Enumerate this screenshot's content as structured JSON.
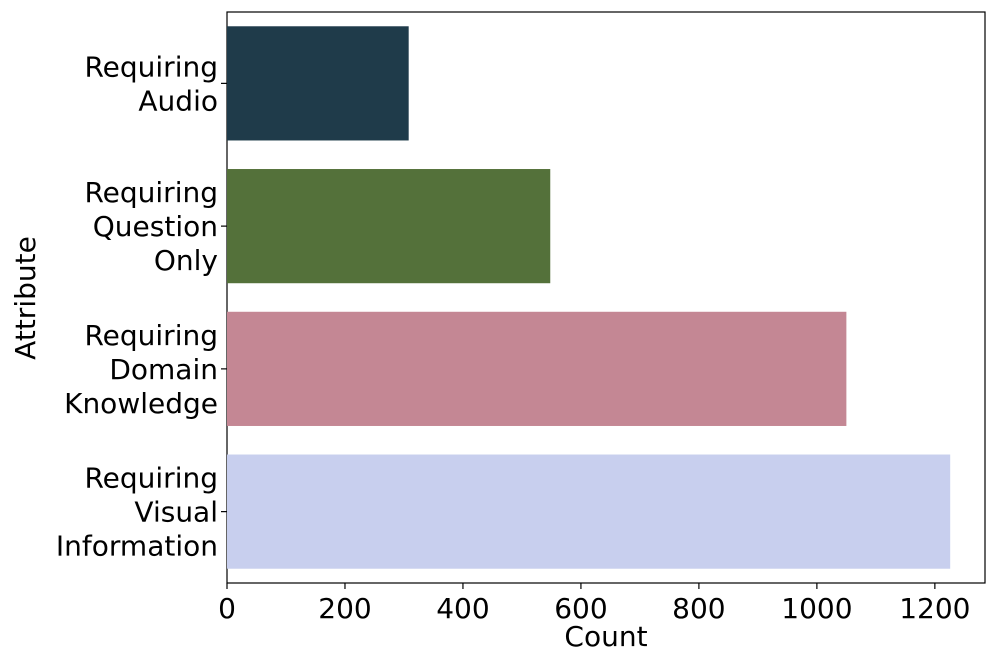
{
  "chart_data": {
    "type": "bar",
    "orientation": "horizontal",
    "categories": [
      [
        "Requiring",
        "Audio"
      ],
      [
        "Requiring",
        "Question",
        "Only"
      ],
      [
        "Requiring",
        "Domain",
        "Knowledge"
      ],
      [
        "Requiring",
        "Visual",
        "Information"
      ]
    ],
    "values": [
      308,
      548,
      1050,
      1226
    ],
    "colors": [
      "#1f3b4a",
      "#54713a",
      "#c48794",
      "#c8cfee"
    ],
    "xlabel": "Count",
    "ylabel": "Attribute",
    "xlim": [
      0,
      1285
    ],
    "xticks": [
      0,
      200,
      400,
      600,
      800,
      1000,
      1200
    ],
    "grid": false,
    "legend": "none"
  }
}
